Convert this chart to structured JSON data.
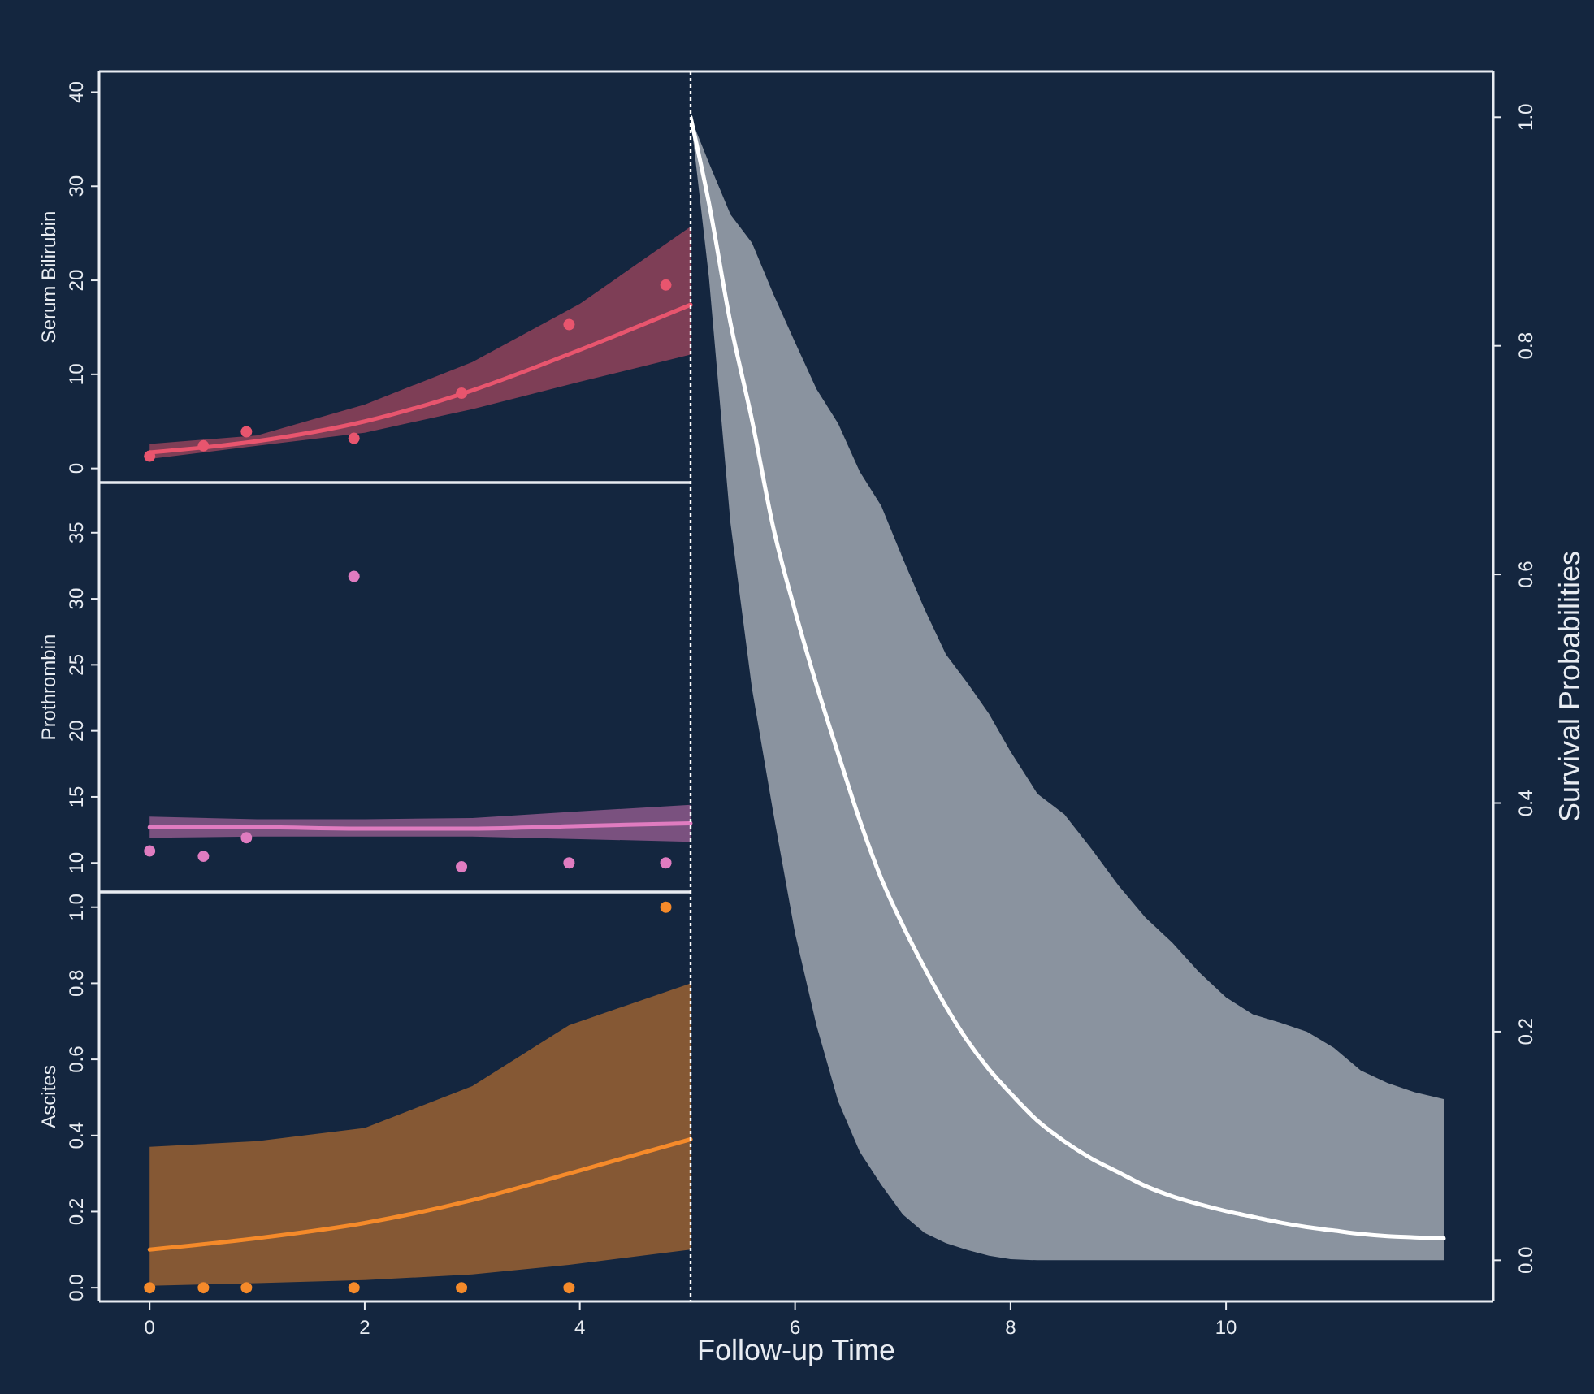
{
  "chart_data": [
    {
      "type": "line",
      "ylabel": "Serum Bilirubin",
      "xlim": [
        -0.47,
        5.03
      ],
      "ylim": [
        -1.5,
        42.2
      ],
      "yticks": [
        0,
        10,
        20,
        30,
        40
      ],
      "tick_labels": "y",
      "series": [
        {
          "color": "#e8556e",
          "x": [
            0,
            1,
            2,
            3,
            4,
            5.03
          ],
          "values": [
            1.7,
            2.9,
            5.0,
            8.3,
            12.6,
            17.4
          ],
          "lower": [
            1.0,
            2.4,
            3.8,
            6.3,
            9.2,
            12.1
          ],
          "upper": [
            2.6,
            3.5,
            6.8,
            11.3,
            17.5,
            25.7
          ]
        },
        {
          "type": "scatter",
          "color": "#e8556e",
          "x": [
            0,
            0.5,
            0.9,
            1.9,
            2.9,
            3.9,
            4.8
          ],
          "values": [
            1.3,
            2.4,
            3.9,
            3.2,
            8.0,
            15.3,
            19.5
          ]
        }
      ]
    },
    {
      "type": "line",
      "ylabel": "Prothrombin",
      "xlim": [
        -0.47,
        5.03
      ],
      "ylim": [
        7.8,
        38.8
      ],
      "yticks": [
        10,
        15,
        20,
        25,
        30,
        35
      ],
      "tick_labels": "y",
      "series": [
        {
          "color": "#e07cc0",
          "x": [
            0,
            1,
            2,
            3,
            4,
            5.03
          ],
          "values": [
            12.7,
            12.7,
            12.6,
            12.6,
            12.8,
            13.0
          ],
          "lower": [
            11.9,
            12.0,
            12.0,
            12.0,
            11.8,
            11.6
          ],
          "upper": [
            13.5,
            13.3,
            13.3,
            13.4,
            13.9,
            14.4
          ]
        },
        {
          "type": "scatter",
          "color": "#e07cc0",
          "x": [
            0,
            0.5,
            0.9,
            1.9,
            2.9,
            3.9,
            4.8
          ],
          "values": [
            10.9,
            10.5,
            11.9,
            31.7,
            9.7,
            10.0,
            10.0
          ]
        }
      ]
    },
    {
      "type": "line",
      "ylabel": "Ascites",
      "xlim": [
        -0.47,
        5.03
      ],
      "xticks": [
        0,
        2,
        4
      ],
      "ylim": [
        -0.036,
        1.04
      ],
      "yticks": [
        {
          "value": 0,
          "label": "0.0"
        },
        {
          "value": 0.2,
          "label": "0.2"
        },
        {
          "value": 0.4,
          "label": "0.4"
        },
        {
          "value": 0.6,
          "label": "0.6"
        },
        {
          "value": 0.8,
          "label": "0.8"
        },
        {
          "value": 1,
          "label": "1.0"
        }
      ],
      "series": [
        {
          "color": "#f58a2a",
          "x": [
            0,
            1,
            2,
            3,
            3.9,
            5.03
          ],
          "values": [
            0.1,
            0.13,
            0.17,
            0.23,
            0.3,
            0.39
          ],
          "lower": [
            0.005,
            0.012,
            0.02,
            0.035,
            0.06,
            0.1
          ],
          "upper": [
            0.37,
            0.385,
            0.42,
            0.53,
            0.69,
            0.8
          ]
        },
        {
          "type": "scatter",
          "color": "#f58a2a",
          "x": [
            0,
            0.5,
            0.9,
            1.9,
            2.9,
            3.9,
            4.8
          ],
          "values": [
            0,
            0,
            0,
            0,
            0,
            0,
            1.0
          ]
        }
      ]
    },
    {
      "type": "line",
      "xlabel": "Follow-up Time",
      "y2label": "Survival Probabilities",
      "xlim": [
        5.03,
        12.48
      ],
      "xticks": [
        6,
        8,
        10
      ],
      "y2lim": [
        -0.036,
        1.04
      ],
      "y2ticks": [
        {
          "value": 0,
          "label": "0.0"
        },
        {
          "value": 0.2,
          "label": "0.2"
        },
        {
          "value": 0.4,
          "label": "0.4"
        },
        {
          "value": 0.6,
          "label": "0.6"
        },
        {
          "value": 0.8,
          "label": "0.8"
        },
        {
          "value": 1,
          "label": "1.0"
        }
      ],
      "ref_lines": [
        {
          "axis": "x",
          "value": 5.03,
          "color": "#ffffff",
          "line_style": "dotted"
        }
      ],
      "series": [
        {
          "axis": "y2",
          "color": "#ffffff",
          "x": [
            5.03,
            5.2,
            5.4,
            5.6,
            5.8,
            6.0,
            6.2,
            6.4,
            6.6,
            6.8,
            7.0,
            7.2,
            7.4,
            7.6,
            7.8,
            8.0,
            8.25,
            8.5,
            8.75,
            9.0,
            9.25,
            9.5,
            9.75,
            10.0,
            10.25,
            10.5,
            10.75,
            11.0,
            11.25,
            11.5,
            11.75,
            12.02
          ],
          "values": [
            1.0,
            0.925,
            0.82,
            0.735,
            0.64,
            0.568,
            0.503,
            0.443,
            0.385,
            0.334,
            0.293,
            0.256,
            0.222,
            0.192,
            0.167,
            0.146,
            0.122,
            0.104,
            0.089,
            0.077,
            0.065,
            0.056,
            0.049,
            0.043,
            0.038,
            0.033,
            0.029,
            0.026,
            0.023,
            0.021,
            0.02,
            0.019
          ],
          "lower": [
            1.0,
            0.86,
            0.645,
            0.5,
            0.39,
            0.286,
            0.205,
            0.139,
            0.095,
            0.066,
            0.04,
            0.024,
            0.015,
            0.009,
            0.004,
            0.001,
            0,
            0,
            0,
            0,
            0,
            0,
            0,
            0,
            0,
            0,
            0,
            0,
            0,
            0,
            0,
            0
          ],
          "upper": [
            1.0,
            0.96,
            0.915,
            0.89,
            0.845,
            0.803,
            0.762,
            0.732,
            0.69,
            0.66,
            0.614,
            0.57,
            0.53,
            0.505,
            0.478,
            0.445,
            0.408,
            0.39,
            0.36,
            0.328,
            0.3,
            0.278,
            0.252,
            0.23,
            0.215,
            0.208,
            0.2,
            0.186,
            0.166,
            0.155,
            0.147,
            0.141
          ]
        }
      ]
    }
  ]
}
